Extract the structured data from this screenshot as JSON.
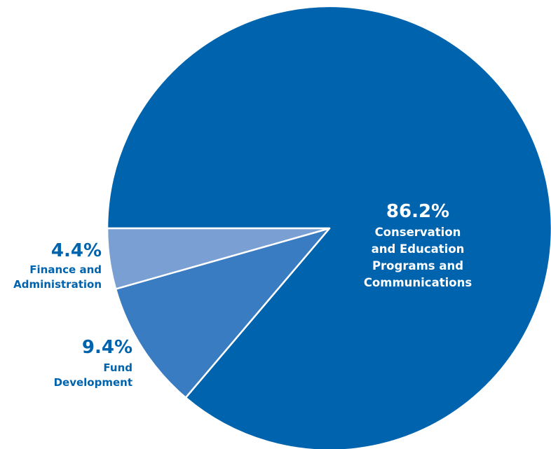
{
  "chart_data": {
    "type": "pie",
    "title": "",
    "slices": [
      {
        "percent_label": "86.2%",
        "value": 86.2,
        "label_lines": [
          "Conservation",
          "and Education",
          "Programs and",
          "Communications"
        ],
        "color": "#0063AE"
      },
      {
        "percent_label": "9.4%",
        "value": 9.4,
        "label_lines": [
          "Fund",
          "Development"
        ],
        "color": "#3A7CC2"
      },
      {
        "percent_label": "4.4%",
        "value": 4.4,
        "label_lines": [
          "Finance and",
          "Administration"
        ],
        "color": "#7A9FD3"
      }
    ],
    "start_angle": "left (9 o'clock)",
    "direction": "counterclockwise",
    "label_colors": {
      "inside": "#ffffff",
      "outside": "#0063AE"
    }
  }
}
